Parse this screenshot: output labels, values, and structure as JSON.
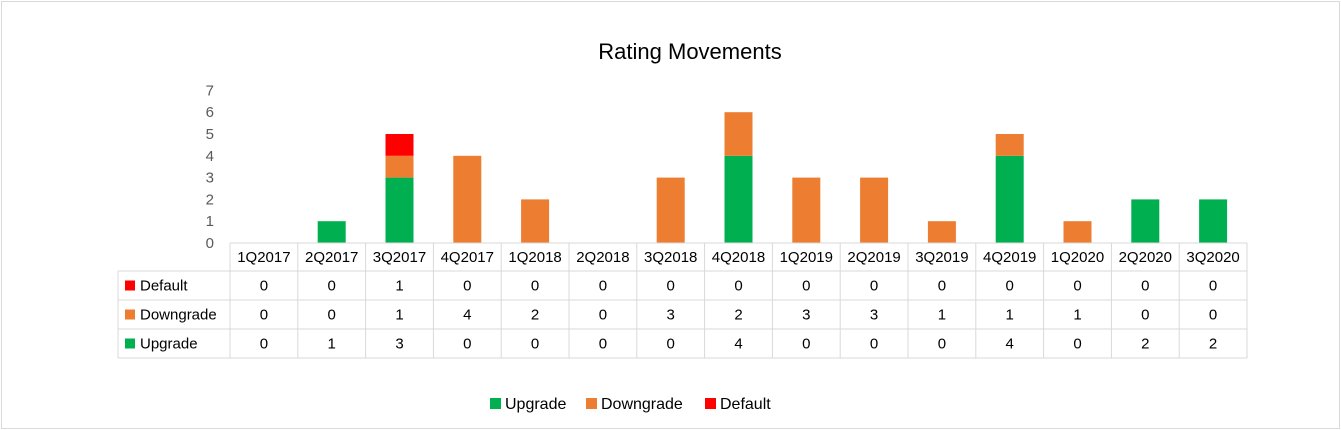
{
  "chart_data": {
    "type": "bar",
    "stacked": true,
    "title": "Rating Movements",
    "categories": [
      "1Q2017",
      "2Q2017",
      "3Q2017",
      "4Q2017",
      "1Q2018",
      "2Q2018",
      "3Q2018",
      "4Q2018",
      "1Q2019",
      "2Q2019",
      "3Q2019",
      "4Q2019",
      "1Q2020",
      "2Q2020",
      "3Q2020"
    ],
    "series": [
      {
        "name": "Upgrade",
        "color": "#00b050",
        "values": [
          0,
          1,
          3,
          0,
          0,
          0,
          0,
          4,
          0,
          0,
          0,
          4,
          0,
          2,
          2
        ]
      },
      {
        "name": "Downgrade",
        "color": "#ed7d31",
        "values": [
          0,
          0,
          1,
          4,
          2,
          0,
          3,
          2,
          3,
          3,
          1,
          1,
          1,
          0,
          0
        ]
      },
      {
        "name": "Default",
        "color": "#ff0000",
        "values": [
          0,
          0,
          1,
          0,
          0,
          0,
          0,
          0,
          0,
          0,
          0,
          0,
          0,
          0,
          0
        ]
      }
    ],
    "table_row_order": [
      "Default",
      "Downgrade",
      "Upgrade"
    ],
    "ylim": [
      0,
      7
    ],
    "yticks": [
      0,
      1,
      2,
      3,
      4,
      5,
      6,
      7
    ],
    "grid": false,
    "data_table": true,
    "legend_position": "bottom"
  }
}
